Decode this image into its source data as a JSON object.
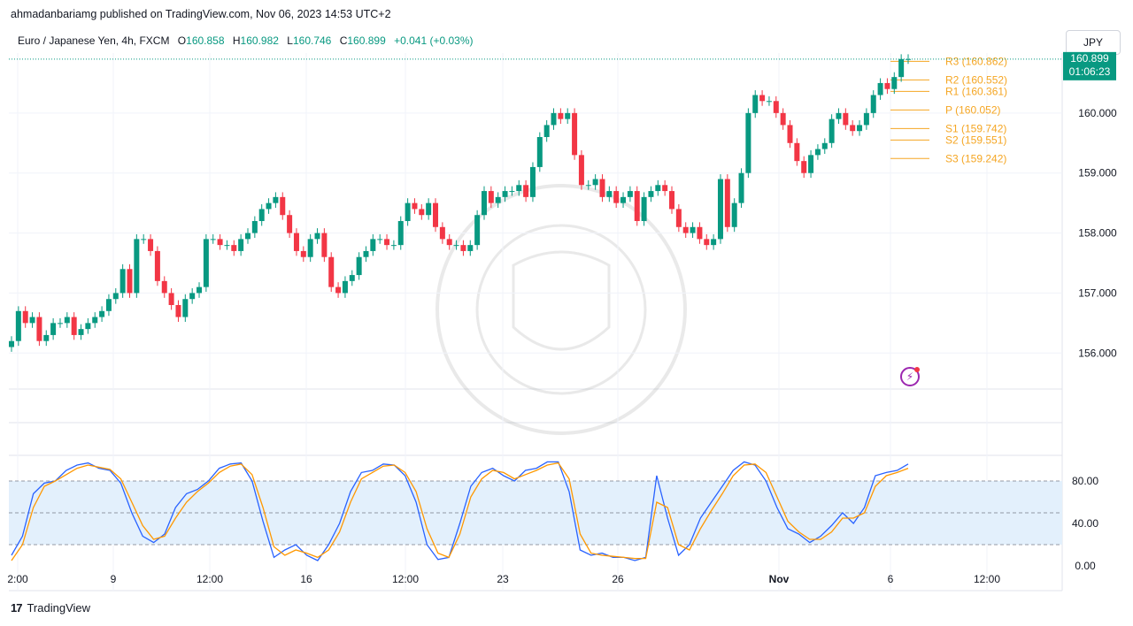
{
  "header": {
    "published": "ahmadanbariamg published on TradingView.com, Nov 06, 2023 14:53 UTC+2"
  },
  "legend": {
    "symbol": "Euro / Japanese Yen, 4h, FXCM",
    "o_label": "O",
    "o_value": "160.858",
    "h_label": "H",
    "h_value": "160.982",
    "l_label": "L",
    "l_value": "160.746",
    "c_label": "C",
    "c_value": "160.899",
    "change": "+0.041 (+0.03%)"
  },
  "currency_button": "JPY",
  "price_tag": {
    "price": "160.899",
    "countdown": "01:06:23"
  },
  "footer": {
    "brand": "TradingView",
    "logo": "17"
  },
  "icons": {
    "publisher_logo": "tradingview-logo-icon",
    "alert": "lightning-icon"
  },
  "colors": {
    "up": "#089981",
    "down": "#f23645",
    "pivot": "#f5a623",
    "k_line": "#2962ff",
    "d_line": "#ff9800",
    "band": "#e3f0fc"
  },
  "chart_data": [
    {
      "type": "candlestick",
      "title": "Euro / Japanese Yen, 4h, FXCM",
      "ylim": [
        155.4,
        161.0
      ],
      "y_ticks": [
        "156.000",
        "157.000",
        "158.000",
        "159.000",
        "160.000"
      ],
      "x_ticks": [
        "2:00",
        "9",
        "12:00",
        "16",
        "12:00",
        "23",
        "26",
        "Nov",
        "6",
        "12:00"
      ],
      "pivots": [
        {
          "label": "R3 (160.862)",
          "value": 160.862
        },
        {
          "label": "R2 (160.552)",
          "value": 160.552
        },
        {
          "label": "R1 (160.361)",
          "value": 160.361
        },
        {
          "label": "P (160.052)",
          "value": 160.052
        },
        {
          "label": "S1 (159.742)",
          "value": 159.742
        },
        {
          "label": "S2 (159.551)",
          "value": 159.551
        },
        {
          "label": "S3 (159.242)",
          "value": 159.242
        }
      ],
      "last_price": 160.899,
      "close": [
        156.2,
        156.7,
        156.5,
        156.6,
        156.2,
        156.3,
        156.5,
        156.5,
        156.6,
        156.3,
        156.4,
        156.5,
        156.6,
        156.7,
        156.9,
        157.0,
        157.4,
        157.0,
        157.9,
        157.9,
        157.7,
        157.2,
        157.0,
        156.8,
        156.6,
        156.9,
        157.0,
        157.1,
        157.9,
        157.9,
        157.8,
        157.8,
        157.7,
        157.9,
        158.0,
        158.2,
        158.4,
        158.5,
        158.6,
        158.3,
        158.0,
        157.7,
        157.6,
        157.9,
        158.0,
        157.6,
        157.1,
        157.0,
        157.2,
        157.3,
        157.6,
        157.7,
        157.9,
        157.9,
        157.8,
        157.8,
        158.2,
        158.5,
        158.4,
        158.3,
        158.5,
        158.1,
        157.9,
        157.8,
        157.8,
        157.7,
        157.8,
        158.3,
        158.7,
        158.5,
        158.6,
        158.7,
        158.7,
        158.8,
        158.6,
        159.1,
        159.6,
        159.8,
        160.0,
        159.9,
        160.0,
        159.3,
        158.8,
        158.8,
        158.9,
        158.6,
        158.7,
        158.5,
        158.6,
        158.7,
        158.2,
        158.6,
        158.7,
        158.8,
        158.7,
        158.4,
        158.1,
        158.0,
        158.1,
        157.9,
        157.8,
        157.9,
        158.9,
        158.1,
        158.5,
        159.0,
        160.0,
        160.3,
        160.2,
        160.2,
        160.0,
        159.8,
        159.5,
        159.2,
        159.0,
        159.3,
        159.4,
        159.5,
        159.9,
        160.0,
        159.8,
        159.7,
        159.8,
        160.0,
        160.3,
        160.5,
        160.4,
        160.6,
        160.9,
        160.9
      ],
      "ohlc_last": {
        "o": 160.858,
        "h": 160.982,
        "l": 160.746,
        "c": 160.899
      }
    },
    {
      "type": "line",
      "title": "",
      "ylim": [
        0,
        100
      ],
      "y_ticks": [
        "0.00",
        "40.00",
        "80.00"
      ],
      "band": [
        20,
        80
      ],
      "series": [
        {
          "color": "#2962ff",
          "values": [
            10,
            28,
            68,
            78,
            80,
            90,
            95,
            97,
            92,
            90,
            78,
            50,
            28,
            22,
            30,
            55,
            68,
            72,
            80,
            92,
            96,
            97,
            80,
            42,
            8,
            15,
            20,
            10,
            5,
            20,
            40,
            70,
            88,
            90,
            96,
            95,
            85,
            60,
            20,
            6,
            8,
            40,
            75,
            88,
            92,
            85,
            80,
            90,
            92,
            98,
            98,
            70,
            15,
            10,
            12,
            8,
            8,
            5,
            8,
            85,
            45,
            10,
            20,
            45,
            60,
            75,
            90,
            98,
            95,
            80,
            55,
            35,
            30,
            22,
            28,
            38,
            50,
            40,
            55,
            85,
            88,
            90,
            96
          ]
        },
        {
          "color": "#ff9800",
          "values": [
            5,
            20,
            55,
            75,
            80,
            86,
            92,
            95,
            93,
            91,
            82,
            60,
            38,
            25,
            28,
            45,
            60,
            70,
            78,
            88,
            94,
            96,
            86,
            55,
            18,
            10,
            15,
            12,
            8,
            15,
            32,
            60,
            82,
            88,
            94,
            95,
            88,
            70,
            35,
            12,
            8,
            30,
            65,
            82,
            90,
            88,
            82,
            86,
            90,
            95,
            97,
            82,
            30,
            12,
            10,
            9,
            8,
            7,
            7,
            60,
            55,
            20,
            15,
            35,
            52,
            68,
            85,
            95,
            96,
            88,
            65,
            42,
            32,
            25,
            25,
            32,
            45,
            45,
            50,
            75,
            85,
            88,
            92
          ]
        }
      ]
    }
  ]
}
